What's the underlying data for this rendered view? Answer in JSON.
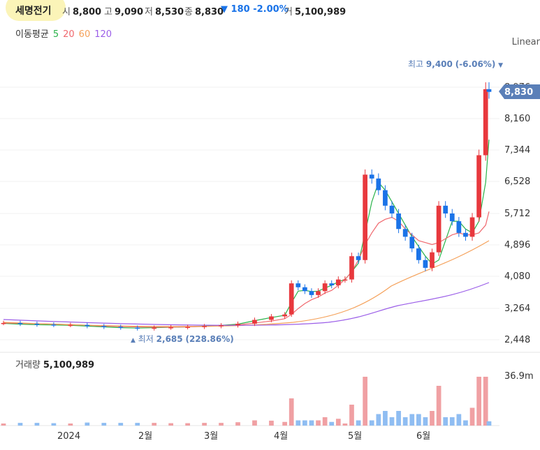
{
  "header": {
    "name": "세명전기",
    "open_label": "시",
    "open": "8,800",
    "high_label": "고",
    "high": "9,090",
    "low_label": "저",
    "low": "8,530",
    "close_label": "종",
    "close": "8,830",
    "change_arrow": "▼",
    "change": "180",
    "change_pct": "-2.00%",
    "volume_label": "거",
    "volume": "5,100,989"
  },
  "ma_legend": {
    "label": "이동평균",
    "periods": [
      {
        "text": "5",
        "color": "#2ab34a"
      },
      {
        "text": "20",
        "color": "#f0686e"
      },
      {
        "text": "60",
        "color": "#f5a15a"
      },
      {
        "text": "120",
        "color": "#9b5ee8"
      }
    ]
  },
  "scale_label": "Linear",
  "price_axis": {
    "ticks": [
      "8,976",
      "8,160",
      "7,344",
      "6,528",
      "5,712",
      "4,896",
      "4,080",
      "3,264",
      "2,448"
    ]
  },
  "current_price_tag": "8,830",
  "annotations": {
    "high": {
      "label": "최고",
      "value": "9,400",
      "pct": "(-6.06%)",
      "marker": "▼"
    },
    "low": {
      "marker": "▲",
      "label": "최저",
      "value": "2,685",
      "pct": "(228.86%)"
    }
  },
  "volume_panel": {
    "label": "거래량",
    "value": "5,100,989",
    "axis_max": "36.9m"
  },
  "time_axis": {
    "labels": [
      "2024",
      "2월",
      "3월",
      "4월",
      "5월",
      "6월"
    ]
  },
  "colors": {
    "up": "#e8383d",
    "down": "#1a73e8",
    "up_volume": "#f0a0a3",
    "down_volume": "#8fbdf2"
  },
  "chart_data": {
    "type": "candlestick",
    "y_range": [
      2448,
      9400
    ],
    "points": [
      {
        "x": 0,
        "y": 2880
      },
      {
        "x": 5,
        "y": 2860
      },
      {
        "x": 10,
        "y": 2840
      },
      {
        "x": 15,
        "y": 2830
      },
      {
        "x": 20,
        "y": 2830
      },
      {
        "x": 25,
        "y": 2800
      },
      {
        "x": 30,
        "y": 2780
      },
      {
        "x": 35,
        "y": 2760
      },
      {
        "x": 40,
        "y": 2740
      },
      {
        "x": 45,
        "y": 2760
      },
      {
        "x": 50,
        "y": 2770
      },
      {
        "x": 55,
        "y": 2780
      },
      {
        "x": 60,
        "y": 2800
      },
      {
        "x": 65,
        "y": 2820
      },
      {
        "x": 70,
        "y": 2860
      },
      {
        "x": 75,
        "y": 2960
      },
      {
        "x": 80,
        "y": 3050
      },
      {
        "x": 84,
        "y": 3100
      },
      {
        "x": 86,
        "y": 3900
      },
      {
        "x": 88,
        "y": 3800
      },
      {
        "x": 90,
        "y": 3700
      },
      {
        "x": 92,
        "y": 3600
      },
      {
        "x": 94,
        "y": 3700
      },
      {
        "x": 96,
        "y": 3900
      },
      {
        "x": 98,
        "y": 3850
      },
      {
        "x": 100,
        "y": 4000
      },
      {
        "x": 102,
        "y": 4000
      },
      {
        "x": 104,
        "y": 4600
      },
      {
        "x": 106,
        "y": 4500
      },
      {
        "x": 108,
        "y": 6700
      },
      {
        "x": 110,
        "y": 6600
      },
      {
        "x": 112,
        "y": 6300
      },
      {
        "x": 114,
        "y": 5900
      },
      {
        "x": 116,
        "y": 5700
      },
      {
        "x": 118,
        "y": 5300
      },
      {
        "x": 120,
        "y": 5100
      },
      {
        "x": 122,
        "y": 4800
      },
      {
        "x": 124,
        "y": 4500
      },
      {
        "x": 126,
        "y": 4300
      },
      {
        "x": 128,
        "y": 4700
      },
      {
        "x": 130,
        "y": 5900
      },
      {
        "x": 132,
        "y": 5700
      },
      {
        "x": 134,
        "y": 5500
      },
      {
        "x": 136,
        "y": 5200
      },
      {
        "x": 138,
        "y": 5100
      },
      {
        "x": 140,
        "y": 5600
      },
      {
        "x": 142,
        "y": 7200
      },
      {
        "x": 144,
        "y": 8900
      },
      {
        "x": 145,
        "y": 8830
      }
    ],
    "ma_lines": [
      {
        "period": "5",
        "values": [
          2870,
          2850,
          2835,
          2830,
          2820,
          2800,
          2780,
          2760,
          2750,
          2760,
          2770,
          2780,
          2800,
          2820,
          2850,
          2940,
          3020,
          3080,
          3400,
          3700,
          3720,
          3690,
          3700,
          3780,
          3850,
          3940,
          4000,
          4200,
          4420,
          5200,
          6000,
          6500,
          6300,
          6000,
          5700,
          5400,
          5100,
          4850,
          4600,
          4400,
          4500,
          5000,
          5500,
          5500,
          5300,
          5200,
          5500,
          6500,
          7600
        ]
      },
      {
        "period": "20",
        "values": [
          2880,
          2870,
          2860,
          2850,
          2840,
          2820,
          2800,
          2790,
          2780,
          2775,
          2775,
          2780,
          2790,
          2810,
          2830,
          2880,
          2930,
          2990,
          3100,
          3250,
          3380,
          3480,
          3550,
          3650,
          3720,
          3850,
          4000,
          4200,
          4500,
          4900,
          5200,
          5450,
          5550,
          5600,
          5500,
          5300,
          5150,
          5000,
          4950,
          4900,
          4950,
          5050,
          5150,
          5200,
          5150,
          5150,
          5200,
          5400,
          5750
        ]
      }
    ]
  }
}
